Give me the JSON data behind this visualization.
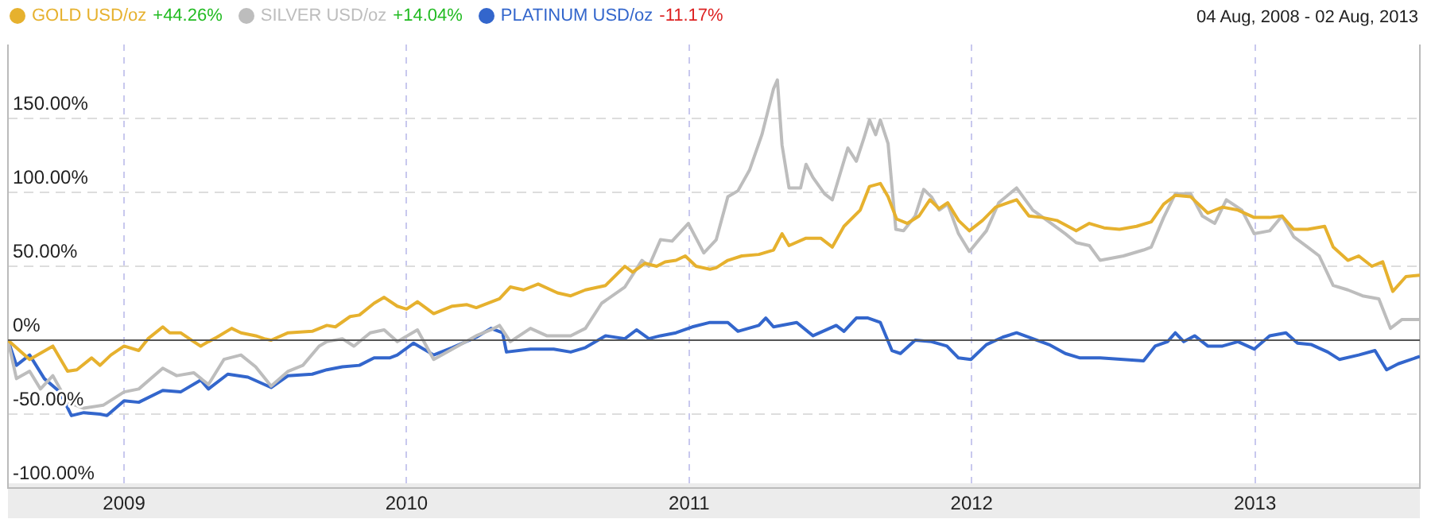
{
  "chart_data": {
    "type": "line",
    "legend": "top left",
    "grid": true,
    "line_style": "solid",
    "marker": "none",
    "xlim": [
      "2008-08-04",
      "2013-08-02"
    ],
    "xticks": [
      {
        "value": "2009-01-01",
        "label": "2009"
      },
      {
        "value": "2010-01-01",
        "label": "2010"
      },
      {
        "value": "2011-01-01",
        "label": "2011"
      },
      {
        "value": "2012-01-01",
        "label": "2012"
      },
      {
        "value": "2013-01-01",
        "label": "2013"
      }
    ],
    "ylim": [
      -100,
      200
    ],
    "yticks": [
      {
        "value": -100,
        "label": "-100.00%"
      },
      {
        "value": -50,
        "label": "-50.00%"
      },
      {
        "value": 0,
        "label": "0%"
      },
      {
        "value": 50,
        "label": "50.00%"
      },
      {
        "value": 100,
        "label": "100.00%"
      },
      {
        "value": 150,
        "label": "150.00%"
      }
    ],
    "ref_lines": [
      {
        "axis": "y",
        "value": 0,
        "label": null,
        "color": "#555555"
      }
    ],
    "annotations": [
      "+44.26%",
      "+14.04%",
      "-11.17%",
      "04 Aug, 2008 - 02 Aug, 2013"
    ],
    "series": [
      {
        "name": "GOLD USD/oz",
        "color": "#e6b12e",
        "x": [
          "2008-08-04",
          "2008-09-01",
          "2008-10-01",
          "2008-10-20",
          "2008-11-01",
          "2008-11-20",
          "2008-12-01",
          "2008-12-15",
          "2009-01-01",
          "2009-01-20",
          "2009-02-01",
          "2009-02-20",
          "2009-03-01",
          "2009-03-15",
          "2009-04-01",
          "2009-04-10",
          "2009-04-20",
          "2009-05-01",
          "2009-05-20",
          "2009-06-01",
          "2009-06-20",
          "2009-07-01",
          "2009-07-10",
          "2009-08-01",
          "2009-09-01",
          "2009-09-20",
          "2009-10-01",
          "2009-10-20",
          "2009-11-01",
          "2009-11-20",
          "2009-12-03",
          "2009-12-20",
          "2010-01-01",
          "2010-01-15",
          "2010-02-05",
          "2010-03-01",
          "2010-03-20",
          "2010-04-01",
          "2010-05-01",
          "2010-05-15",
          "2010-06-01",
          "2010-06-20",
          "2010-07-15",
          "2010-08-01",
          "2010-08-20",
          "2010-09-15",
          "2010-10-10",
          "2010-10-20",
          "2010-11-05",
          "2010-11-20",
          "2010-12-01",
          "2010-12-15",
          "2010-12-27",
          "2011-01-10",
          "2011-01-28",
          "2011-02-05",
          "2011-02-20",
          "2011-03-10",
          "2011-04-01",
          "2011-04-20",
          "2011-05-01",
          "2011-05-10",
          "2011-06-01",
          "2011-06-20",
          "2011-07-05",
          "2011-07-20",
          "2011-08-10",
          "2011-08-22",
          "2011-09-05",
          "2011-09-15",
          "2011-09-26",
          "2011-10-10",
          "2011-10-25",
          "2011-11-08",
          "2011-11-20",
          "2011-12-01",
          "2011-12-15",
          "2011-12-29",
          "2012-01-15",
          "2012-02-01",
          "2012-02-28",
          "2012-03-15",
          "2012-04-01",
          "2012-04-20",
          "2012-05-15",
          "2012-06-01",
          "2012-06-20",
          "2012-07-10",
          "2012-08-01",
          "2012-08-20",
          "2012-09-05",
          "2012-09-20",
          "2012-10-10",
          "2012-11-01",
          "2012-11-20",
          "2012-12-10",
          "2012-12-31",
          "2013-01-20",
          "2013-02-05",
          "2013-02-20",
          "2013-03-10",
          "2013-04-01",
          "2013-04-12",
          "2013-05-01",
          "2013-05-15",
          "2013-06-01",
          "2013-06-15",
          "2013-06-28",
          "2013-07-15",
          "2013-08-02"
        ],
        "values": [
          0,
          -13,
          -4,
          -21,
          -20,
          -12,
          -17,
          -10,
          -4,
          -7,
          1,
          9,
          5,
          5,
          -1,
          -4,
          -1,
          2,
          8,
          5,
          3,
          1,
          0,
          5,
          6,
          10,
          9,
          16,
          17,
          25,
          29,
          23,
          21,
          26,
          18,
          23,
          24,
          22,
          28,
          36,
          34,
          38,
          32,
          30,
          34,
          37,
          50,
          46,
          52,
          50,
          53,
          54,
          57,
          50,
          48,
          49,
          54,
          57,
          58,
          61,
          72,
          64,
          69,
          69,
          63,
          77,
          88,
          104,
          106,
          97,
          82,
          79,
          84,
          95,
          89,
          93,
          81,
          74,
          81,
          90,
          95,
          84,
          83,
          81,
          74,
          79,
          76,
          75,
          77,
          80,
          92,
          98,
          97,
          86,
          90,
          88,
          83,
          83,
          84,
          75,
          75,
          77,
          63,
          54,
          57,
          50,
          53,
          33,
          43,
          44
        ]
      },
      {
        "name": "SILVER USD/oz",
        "color": "#bdbdbd",
        "x": [
          "2008-08-04",
          "2008-08-15",
          "2008-09-01",
          "2008-09-15",
          "2008-10-01",
          "2008-10-20",
          "2008-11-10",
          "2008-12-05",
          "2009-01-01",
          "2009-01-20",
          "2009-02-20",
          "2009-03-10",
          "2009-04-01",
          "2009-04-20",
          "2009-05-10",
          "2009-06-01",
          "2009-06-20",
          "2009-07-10",
          "2009-08-01",
          "2009-08-20",
          "2009-09-10",
          "2009-09-20",
          "2009-10-10",
          "2009-10-25",
          "2009-11-15",
          "2009-12-03",
          "2009-12-20",
          "2010-01-15",
          "2010-02-05",
          "2010-03-01",
          "2010-04-01",
          "2010-04-20",
          "2010-05-01",
          "2010-05-15",
          "2010-06-10",
          "2010-07-01",
          "2010-08-01",
          "2010-08-20",
          "2010-09-10",
          "2010-10-10",
          "2010-11-01",
          "2010-11-10",
          "2010-11-25",
          "2010-12-10",
          "2010-12-31",
          "2011-01-20",
          "2011-02-05",
          "2011-02-20",
          "2011-03-05",
          "2011-03-20",
          "2011-04-05",
          "2011-04-20",
          "2011-04-25",
          "2011-05-01",
          "2011-05-10",
          "2011-05-25",
          "2011-06-01",
          "2011-06-10",
          "2011-06-25",
          "2011-07-05",
          "2011-07-25",
          "2011-08-05",
          "2011-08-15",
          "2011-08-22",
          "2011-08-30",
          "2011-09-05",
          "2011-09-15",
          "2011-09-25",
          "2011-10-05",
          "2011-10-20",
          "2011-10-31",
          "2011-11-10",
          "2011-11-20",
          "2011-12-01",
          "2011-12-15",
          "2011-12-29",
          "2012-01-20",
          "2012-02-05",
          "2012-02-28",
          "2012-03-20",
          "2012-04-10",
          "2012-05-01",
          "2012-05-15",
          "2012-06-01",
          "2012-06-15",
          "2012-07-15",
          "2012-08-10",
          "2012-08-20",
          "2012-09-05",
          "2012-09-20",
          "2012-10-10",
          "2012-10-25",
          "2012-11-10",
          "2012-11-25",
          "2012-12-15",
          "2012-12-31",
          "2013-01-20",
          "2013-02-05",
          "2013-02-20",
          "2013-03-10",
          "2013-03-25",
          "2013-04-12",
          "2013-05-01",
          "2013-05-20",
          "2013-06-10",
          "2013-06-25",
          "2013-07-10",
          "2013-08-02"
        ],
        "values": [
          0,
          -26,
          -21,
          -33,
          -24,
          -42,
          -46,
          -44,
          -35,
          -33,
          -19,
          -24,
          -22,
          -30,
          -13,
          -10,
          -18,
          -31,
          -21,
          -17,
          -4,
          -1,
          1,
          -4,
          5,
          7,
          -1,
          7,
          -13,
          -6,
          3,
          7,
          10,
          -1,
          8,
          3,
          3,
          8,
          25,
          36,
          54,
          50,
          68,
          67,
          79,
          59,
          68,
          97,
          101,
          115,
          139,
          170,
          176,
          132,
          103,
          103,
          119,
          110,
          99,
          95,
          130,
          121,
          137,
          149,
          139,
          149,
          133,
          75,
          74,
          84,
          102,
          97,
          88,
          92,
          72,
          60,
          74,
          93,
          103,
          88,
          80,
          72,
          66,
          64,
          54,
          57,
          61,
          63,
          83,
          99,
          99,
          84,
          79,
          95,
          88,
          72,
          74,
          84,
          70,
          63,
          57,
          37,
          34,
          30,
          28,
          8,
          14,
          14
        ]
      },
      {
        "name": "PLATINUM USD/oz",
        "color": "#3366cc",
        "x": [
          "2008-08-04",
          "2008-08-15",
          "2008-09-01",
          "2008-09-20",
          "2008-10-10",
          "2008-10-25",
          "2008-11-10",
          "2008-12-01",
          "2008-12-10",
          "2009-01-01",
          "2009-01-20",
          "2009-02-20",
          "2009-03-15",
          "2009-04-10",
          "2009-04-20",
          "2009-05-15",
          "2009-06-10",
          "2009-07-10",
          "2009-08-01",
          "2009-09-01",
          "2009-09-20",
          "2009-10-10",
          "2009-11-01",
          "2009-11-20",
          "2009-12-10",
          "2009-12-20",
          "2010-01-10",
          "2010-02-05",
          "2010-03-01",
          "2010-04-01",
          "2010-04-20",
          "2010-05-05",
          "2010-05-10",
          "2010-06-10",
          "2010-07-10",
          "2010-08-01",
          "2010-08-20",
          "2010-09-15",
          "2010-10-10",
          "2010-10-25",
          "2010-11-10",
          "2010-11-25",
          "2010-12-15",
          "2011-01-05",
          "2011-01-28",
          "2011-02-20",
          "2011-03-05",
          "2011-04-01",
          "2011-04-10",
          "2011-04-20",
          "2011-05-20",
          "2011-06-10",
          "2011-07-10",
          "2011-07-20",
          "2011-08-05",
          "2011-08-20",
          "2011-09-05",
          "2011-09-20",
          "2011-10-01",
          "2011-10-20",
          "2011-11-10",
          "2011-11-30",
          "2011-12-15",
          "2011-12-31",
          "2012-01-20",
          "2012-02-10",
          "2012-02-28",
          "2012-03-20",
          "2012-04-10",
          "2012-05-01",
          "2012-05-20",
          "2012-06-15",
          "2012-07-15",
          "2012-08-10",
          "2012-08-25",
          "2012-09-10",
          "2012-09-20",
          "2012-10-01",
          "2012-10-15",
          "2012-11-01",
          "2012-11-20",
          "2012-12-10",
          "2012-12-31",
          "2013-01-20",
          "2013-02-10",
          "2013-02-25",
          "2013-03-15",
          "2013-04-05",
          "2013-04-20",
          "2013-05-15",
          "2013-06-05",
          "2013-06-20",
          "2013-07-05",
          "2013-08-02"
        ],
        "values": [
          0,
          -17,
          -10,
          -26,
          -35,
          -51,
          -49,
          -50,
          -51,
          -41,
          -42,
          -34,
          -35,
          -27,
          -33,
          -23,
          -25,
          -32,
          -24,
          -23,
          -20,
          -18,
          -17,
          -12,
          -12,
          -10,
          -2,
          -10,
          -5,
          2,
          8,
          5,
          -8,
          -6,
          -6,
          -8,
          -5,
          3,
          1,
          7,
          1,
          3,
          5,
          9,
          12,
          12,
          6,
          10,
          15,
          9,
          12,
          3,
          10,
          6,
          15,
          15,
          12,
          -7,
          -9,
          0,
          -1,
          -4,
          -12,
          -13,
          -3,
          2,
          5,
          1,
          -3,
          -9,
          -12,
          -12,
          -13,
          -14,
          -4,
          -1,
          5,
          -1,
          3,
          -4,
          -4,
          -1,
          -6,
          3,
          5,
          -2,
          -3,
          -8,
          -13,
          -10,
          -7,
          -20,
          -16,
          -11
        ]
      }
    ]
  }
}
